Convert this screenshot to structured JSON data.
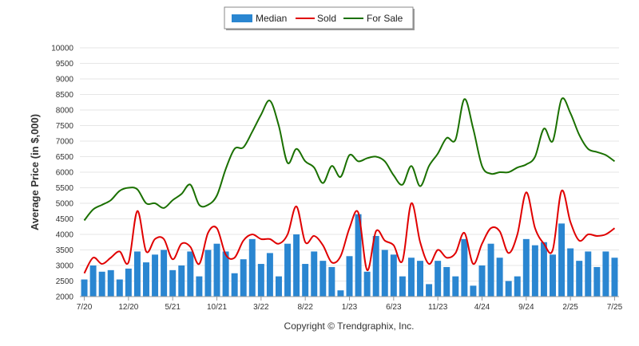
{
  "chart_data": {
    "type": "bar",
    "ylabel": "Average Price (in $,000)",
    "ylim": [
      2000,
      10000
    ],
    "yticks": [
      2000,
      2500,
      3000,
      3500,
      4000,
      4500,
      5000,
      5500,
      6000,
      6500,
      7000,
      7500,
      8000,
      8500,
      9000,
      9500,
      10000
    ],
    "xtick_labels": [
      "7/20",
      "12/20",
      "5/21",
      "10/21",
      "3/22",
      "8/22",
      "1/23",
      "6/23",
      "11/23",
      "4/24",
      "9/24",
      "2/25",
      "7/25"
    ],
    "xtick_every": 5,
    "grid": true,
    "legend_position": "top-center",
    "footer": "Copyright © Trendgraphix, Inc.",
    "categories": [
      "7/20",
      "8/20",
      "9/20",
      "10/20",
      "11/20",
      "12/20",
      "1/21",
      "2/21",
      "3/21",
      "4/21",
      "5/21",
      "6/21",
      "7/21",
      "8/21",
      "9/21",
      "10/21",
      "11/21",
      "12/21",
      "1/22",
      "2/22",
      "3/22",
      "4/22",
      "5/22",
      "6/22",
      "7/22",
      "8/22",
      "9/22",
      "10/22",
      "11/22",
      "12/22",
      "1/23",
      "2/23",
      "3/23",
      "4/23",
      "5/23",
      "6/23",
      "7/23",
      "8/23",
      "9/23",
      "10/23",
      "11/23",
      "12/23",
      "1/24",
      "2/24",
      "3/24",
      "4/24",
      "5/24",
      "6/24",
      "7/24",
      "8/24",
      "9/24",
      "10/24",
      "11/24",
      "12/24",
      "1/25",
      "2/25",
      "3/25",
      "4/25",
      "5/25",
      "6/25",
      "7/25"
    ],
    "series": [
      {
        "name": "Median",
        "type": "bar",
        "color": "#2a86d1",
        "values": [
          2550,
          3000,
          2800,
          2850,
          2550,
          2900,
          3450,
          3100,
          3350,
          3500,
          2850,
          3000,
          3450,
          2650,
          3500,
          3700,
          3450,
          2750,
          3200,
          3850,
          3050,
          3400,
          2650,
          3700,
          4000,
          3050,
          3450,
          3150,
          2950,
          2200,
          3300,
          4650,
          2800,
          3950,
          3500,
          3350,
          2650,
          3250,
          3150,
          2400,
          3150,
          2950,
          2650,
          3850,
          2350,
          3000,
          3700,
          3250,
          2500,
          2650,
          3850,
          3650,
          3750,
          3350,
          4350,
          3550,
          3150,
          3450,
          2950,
          3450,
          3250
        ]
      },
      {
        "name": "Sold",
        "type": "line",
        "color": "#e00000",
        "values": [
          2750,
          3250,
          3050,
          3250,
          3450,
          3100,
          4750,
          3450,
          3850,
          3850,
          3200,
          3700,
          3600,
          3050,
          4050,
          4200,
          3350,
          3250,
          3800,
          4000,
          3850,
          3850,
          3700,
          4000,
          4900,
          3750,
          3950,
          3650,
          3100,
          3300,
          4200,
          4700,
          2850,
          4100,
          3800,
          3650,
          3150,
          5000,
          3750,
          3050,
          3500,
          3250,
          3400,
          4050,
          3050,
          3700,
          4200,
          4100,
          3400,
          4000,
          5350,
          4200,
          3700,
          3500,
          5400,
          4400,
          3800,
          4000,
          3950,
          4000,
          4200
        ]
      },
      {
        "name": "For Sale",
        "type": "line",
        "color": "#1a7000",
        "values": [
          4450,
          4800,
          4950,
          5100,
          5400,
          5500,
          5450,
          5000,
          5000,
          4850,
          5100,
          5300,
          5600,
          4950,
          4950,
          5250,
          6100,
          6750,
          6800,
          7300,
          7850,
          8300,
          7500,
          6300,
          6750,
          6350,
          6150,
          5650,
          6200,
          5850,
          6550,
          6350,
          6450,
          6500,
          6350,
          5900,
          5600,
          6200,
          5550,
          6200,
          6600,
          7100,
          7050,
          8350,
          7400,
          6200,
          5950,
          6000,
          6000,
          6150,
          6250,
          6500,
          7400,
          7000,
          8350,
          7900,
          7200,
          6750,
          6650,
          6550,
          6350
        ]
      }
    ]
  }
}
